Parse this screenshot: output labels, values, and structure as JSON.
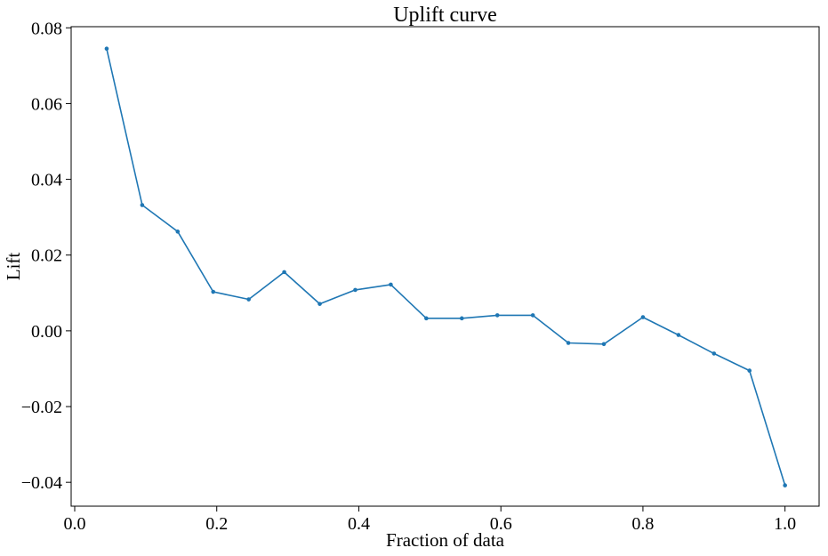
{
  "chart_data": {
    "type": "line",
    "title": "Uplift curve",
    "xlabel": "Fraction of data",
    "ylabel": "Lift",
    "xlim": [
      -0.005,
      1.048
    ],
    "ylim": [
      -0.0463,
      0.0803
    ],
    "xticks": [
      0.0,
      0.2,
      0.4,
      0.6,
      0.8,
      1.0
    ],
    "xtick_labels": [
      "0.0",
      "0.2",
      "0.4",
      "0.6",
      "0.8",
      "1.0"
    ],
    "yticks": [
      -0.04,
      -0.02,
      0.0,
      0.02,
      0.04,
      0.06,
      0.08
    ],
    "ytick_labels": [
      "−0.04",
      "−0.02",
      "0.00",
      "0.02",
      "0.04",
      "0.06",
      "0.08"
    ],
    "grid": false,
    "series": [
      {
        "color": "#1f77b4",
        "marker": "point",
        "x": [
          0.045,
          0.095,
          0.145,
          0.195,
          0.245,
          0.295,
          0.345,
          0.395,
          0.445,
          0.495,
          0.545,
          0.595,
          0.645,
          0.695,
          0.745,
          0.8,
          0.85,
          0.9,
          0.95,
          1.0
        ],
        "y": [
          0.0745,
          0.0332,
          0.0262,
          0.0103,
          0.0083,
          0.0155,
          0.0071,
          0.0108,
          0.0122,
          0.0033,
          0.0033,
          0.0041,
          0.0041,
          -0.0032,
          -0.0035,
          0.0036,
          -0.0011,
          -0.006,
          -0.0105,
          -0.0408
        ]
      }
    ]
  }
}
